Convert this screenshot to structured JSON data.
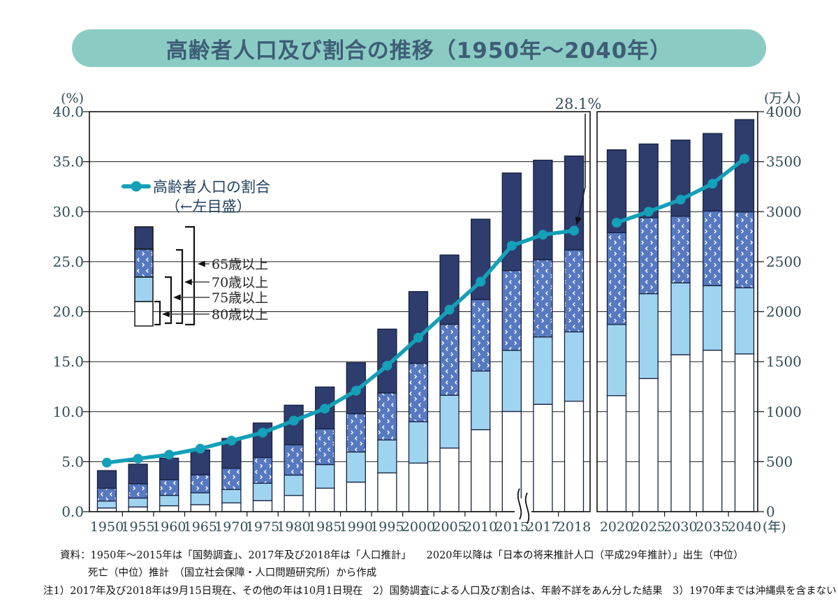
{
  "title": "高齢者人口及び割合の推移（1950年～2040年）",
  "banner": {
    "bg": "#8accc4",
    "text_color": "#3f5d77"
  },
  "colors": {
    "navy": "#2e3d6e",
    "pattern_base": "#5779c1",
    "pattern_mark": "#ffffff",
    "lightblue": "#9fd4f1",
    "white": "#ffffff",
    "bar_stroke": "#15203f",
    "line": "#14a0b8",
    "grid": "#1c1c1c",
    "axis_text": "#2f4d57",
    "legend_text": "#22405e",
    "note_text": "#111111",
    "annotation_text": "#2f4d57"
  },
  "chart_data": {
    "type": "bar",
    "subtype": "stacked-bars-with-ratio-line, two panels with axis break",
    "categories": [
      "1950",
      "1955",
      "1960",
      "1965",
      "1970",
      "1975",
      "1980",
      "1985",
      "1990",
      "1995",
      "2000",
      "2005",
      "2010",
      "2015",
      "2017",
      "2018",
      "2020",
      "2025",
      "2030",
      "2035",
      "2040"
    ],
    "panel_split_index": 16,
    "series": [
      {
        "name": "65歳以上",
        "role": "navy",
        "unit": "万人",
        "cumulative": true,
        "values": [
          411,
          475,
          535,
          618,
          733,
          887,
          1065,
          1247,
          1489,
          1826,
          2201,
          2567,
          2925,
          3387,
          3515,
          3557,
          3619,
          3677,
          3716,
          3782,
          3921
        ]
      },
      {
        "name": "70歳以上",
        "role": "pattern",
        "unit": "万人",
        "cumulative": true,
        "values": [
          234,
          277,
          319,
          368,
          434,
          542,
          669,
          828,
          980,
          1187,
          1483,
          1874,
          2121,
          2411,
          2519,
          2618,
          2790,
          2941,
          2954,
          3007,
          2998
        ]
      },
      {
        "name": "75歳以上",
        "role": "lightblue",
        "unit": "万人",
        "cumulative": true,
        "values": [
          106,
          136,
          163,
          189,
          221,
          284,
          366,
          471,
          597,
          717,
          900,
          1164,
          1407,
          1613,
          1747,
          1798,
          1872,
          2180,
          2288,
          2260,
          2239
        ]
      },
      {
        "name": "80歳以上",
        "role": "white",
        "unit": "万人",
        "cumulative": true,
        "values": [
          37,
          47,
          59,
          70,
          88,
          110,
          162,
          235,
          296,
          388,
          486,
          636,
          820,
          1002,
          1074,
          1104,
          1160,
          1331,
          1569,
          1615,
          1578
        ]
      }
    ],
    "line": {
      "name": "高齢者人口の割合",
      "legend_note": "（←左目盛）",
      "unit": "%",
      "values": [
        4.9,
        5.3,
        5.7,
        6.3,
        7.1,
        7.9,
        9.1,
        10.3,
        12.1,
        14.6,
        17.4,
        20.2,
        23.0,
        26.6,
        27.7,
        28.1,
        28.9,
        30.0,
        31.2,
        32.8,
        35.3
      ]
    },
    "left_axis": {
      "unit_label": "(%)",
      "min": 0,
      "max": 40,
      "step": 5,
      "decimals": 1
    },
    "right_axis": {
      "unit_label": "(万人)",
      "min": 0,
      "max": 4000,
      "step": 500,
      "decimals": 0
    },
    "x_unit_label": "(年)",
    "annotation": {
      "text": "28.1%",
      "target_year": "2018"
    },
    "legend_ages": [
      "65歳以上",
      "70歳以上",
      "75歳以上",
      "80歳以上"
    ],
    "grid": true,
    "legend_position": "inside-top-left"
  },
  "notes": {
    "line1": "資料：1950年～2015年は「国勢調査」、2017年及び2018年は「人口推計」　　2020年以降は「日本の将来推計人口（平成29年推計）」出生（中位）",
    "line2": "死亡（中位）推計　（国立社会保障・人口問題研究所）から作成",
    "line3": "注1）2017年及び2018年は9月15日現在、その他の年は10月1日現在　2）国勢調査による人口及び割合は、年齢不詳をあん分した結果　3）1970年までは沖縄県を含まない"
  }
}
